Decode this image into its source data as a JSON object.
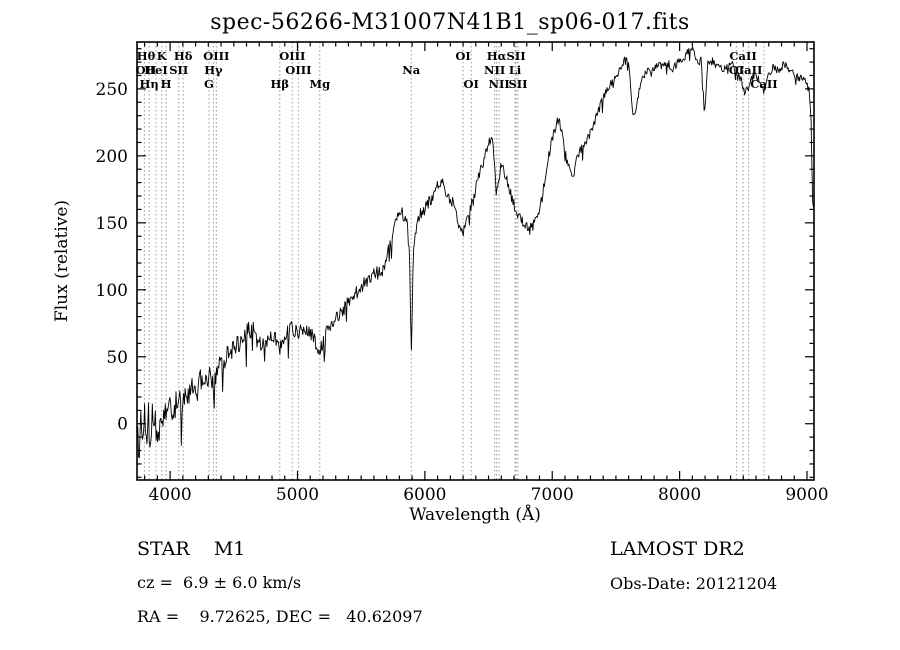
{
  "footer": {
    "class_label": "STAR    M1",
    "survey": "LAMOST DR2",
    "cz": "cz =  6.9 ± 6.0 km/s",
    "obs_date": "Obs-Date: 20121204",
    "coords": "RA =    9.72625, DEC =   40.62097"
  },
  "chart_data": {
    "type": "line",
    "title": "spec-56266-M31007N41B1_sp06-017.fits",
    "xlabel": "Wavelength (Å)",
    "ylabel": "Flux (relative)",
    "xlim": [
      3740,
      9055
    ],
    "ylim": [
      -42,
      285
    ],
    "xticks": [
      4000,
      5000,
      6000,
      7000,
      8000,
      9000
    ],
    "yticks": [
      0,
      50,
      100,
      150,
      200,
      250
    ],
    "x_minor_step": 100,
    "y_minor_step": 10,
    "grid": false,
    "legend": "none",
    "line_color": "#000000",
    "marker_line_color": "#999999",
    "noise": {
      "x": [
        3740,
        4300,
        5000,
        6000,
        7000,
        8000,
        9050
      ],
      "amp": [
        13,
        9,
        6,
        5,
        4,
        3.5,
        3
      ],
      "seed": 20121204
    },
    "spectral_lines": [
      {
        "label": "OII",
        "wavelength": 3727,
        "row": 2
      },
      {
        "label": "Hθ",
        "wavelength": 3798,
        "row": 1
      },
      {
        "label": "Hη",
        "wavelength": 3835,
        "row": 3
      },
      {
        "label": "HeI",
        "wavelength": 3889,
        "row": 2
      },
      {
        "label": "K",
        "wavelength": 3934,
        "row": 1
      },
      {
        "label": "H",
        "wavelength": 3968,
        "row": 3
      },
      {
        "label": "SII",
        "wavelength": 4068,
        "row": 2
      },
      {
        "label": "Hδ",
        "wavelength": 4102,
        "row": 1
      },
      {
        "label": "G",
        "wavelength": 4305,
        "row": 3
      },
      {
        "label": "Hγ",
        "wavelength": 4340,
        "row": 2
      },
      {
        "label": "OIII",
        "wavelength": 4363,
        "row": 1
      },
      {
        "label": "Hβ",
        "wavelength": 4861,
        "row": 3
      },
      {
        "label": "OIII",
        "wavelength": 4959,
        "row": 1
      },
      {
        "label": "OIII",
        "wavelength": 5007,
        "row": 2
      },
      {
        "label": "Mg",
        "wavelength": 5175,
        "row": 3
      },
      {
        "label": "Na",
        "wavelength": 5893,
        "row": 2
      },
      {
        "label": "OI",
        "wavelength": 6300,
        "row": 1
      },
      {
        "label": "OI",
        "wavelength": 6364,
        "row": 3
      },
      {
        "label": "NII",
        "wavelength": 6548,
        "row": 2
      },
      {
        "label": "Hα",
        "wavelength": 6563,
        "row": 1
      },
      {
        "label": "NII",
        "wavelength": 6583,
        "row": 3
      },
      {
        "label": "Li",
        "wavelength": 6708,
        "row": 2
      },
      {
        "label": "SII",
        "wavelength": 6716,
        "row": 1
      },
      {
        "label": "SII",
        "wavelength": 6731,
        "row": 3
      },
      {
        "label": "OI",
        "wavelength": 8446,
        "row": 2
      },
      {
        "label": "CaII",
        "wavelength": 8498,
        "row": 1
      },
      {
        "label": "CaII",
        "wavelength": 8542,
        "row": 2
      },
      {
        "label": "CaII",
        "wavelength": 8662,
        "row": 3
      }
    ],
    "series": [
      {
        "name": "spectrum",
        "points": [
          [
            3740,
            -5
          ],
          [
            3755,
            -22
          ],
          [
            3770,
            12
          ],
          [
            3785,
            -8
          ],
          [
            3800,
            4
          ],
          [
            3815,
            -14
          ],
          [
            3830,
            6
          ],
          [
            3845,
            -18
          ],
          [
            3860,
            10
          ],
          [
            3875,
            -2
          ],
          [
            3890,
            8
          ],
          [
            3905,
            -10
          ],
          [
            3920,
            6
          ],
          [
            3935,
            -4
          ],
          [
            3950,
            14
          ],
          [
            3965,
            4
          ],
          [
            3980,
            12
          ],
          [
            4000,
            16
          ],
          [
            4030,
            10
          ],
          [
            4060,
            20
          ],
          [
            4090,
            14
          ],
          [
            4120,
            26
          ],
          [
            4150,
            20
          ],
          [
            4180,
            30
          ],
          [
            4210,
            24
          ],
          [
            4240,
            33
          ],
          [
            4270,
            28
          ],
          [
            4300,
            36
          ],
          [
            4340,
            30
          ],
          [
            4380,
            42
          ],
          [
            4420,
            47
          ],
          [
            4460,
            54
          ],
          [
            4500,
            57
          ],
          [
            4540,
            60
          ],
          [
            4580,
            66
          ],
          [
            4620,
            70
          ],
          [
            4660,
            71
          ],
          [
            4700,
            62
          ],
          [
            4740,
            57
          ],
          [
            4780,
            64
          ],
          [
            4820,
            67
          ],
          [
            4861,
            57
          ],
          [
            4900,
            67
          ],
          [
            4950,
            71
          ],
          [
            5000,
            69
          ],
          [
            5050,
            72
          ],
          [
            5100,
            69
          ],
          [
            5175,
            54
          ],
          [
            5220,
            67
          ],
          [
            5270,
            74
          ],
          [
            5320,
            80
          ],
          [
            5370,
            87
          ],
          [
            5420,
            92
          ],
          [
            5470,
            99
          ],
          [
            5520,
            104
          ],
          [
            5570,
            110
          ],
          [
            5620,
            114
          ],
          [
            5660,
            111
          ],
          [
            5700,
            124
          ],
          [
            5740,
            139
          ],
          [
            5780,
            154
          ],
          [
            5820,
            159
          ],
          [
            5860,
            149
          ],
          [
            5880,
            128
          ],
          [
            5893,
            48
          ],
          [
            5910,
            132
          ],
          [
            5940,
            153
          ],
          [
            5980,
            158
          ],
          [
            6020,
            163
          ],
          [
            6060,
            170
          ],
          [
            6100,
            178
          ],
          [
            6140,
            183
          ],
          [
            6180,
            169
          ],
          [
            6220,
            166
          ],
          [
            6260,
            149
          ],
          [
            6300,
            141
          ],
          [
            6340,
            158
          ],
          [
            6380,
            168
          ],
          [
            6420,
            183
          ],
          [
            6460,
            196
          ],
          [
            6500,
            208
          ],
          [
            6530,
            215
          ],
          [
            6563,
            174
          ],
          [
            6600,
            193
          ],
          [
            6640,
            184
          ],
          [
            6680,
            169
          ],
          [
            6720,
            159
          ],
          [
            6760,
            151
          ],
          [
            6800,
            147
          ],
          [
            6840,
            149
          ],
          [
            6880,
            154
          ],
          [
            6920,
            168
          ],
          [
            6960,
            193
          ],
          [
            7000,
            213
          ],
          [
            7030,
            222
          ],
          [
            7050,
            231
          ],
          [
            7080,
            214
          ],
          [
            7120,
            193
          ],
          [
            7160,
            184
          ],
          [
            7200,
            199
          ],
          [
            7240,
            208
          ],
          [
            7280,
            213
          ],
          [
            7320,
            223
          ],
          [
            7360,
            233
          ],
          [
            7400,
            243
          ],
          [
            7440,
            250
          ],
          [
            7480,
            256
          ],
          [
            7520,
            263
          ],
          [
            7560,
            271
          ],
          [
            7600,
            270
          ],
          [
            7625,
            236
          ],
          [
            7650,
            228
          ],
          [
            7680,
            249
          ],
          [
            7710,
            257
          ],
          [
            7740,
            264
          ],
          [
            7780,
            261
          ],
          [
            7820,
            269
          ],
          [
            7860,
            267
          ],
          [
            7900,
            271
          ],
          [
            7940,
            264
          ],
          [
            7980,
            269
          ],
          [
            8020,
            273
          ],
          [
            8060,
            277
          ],
          [
            8100,
            279
          ],
          [
            8140,
            269
          ],
          [
            8170,
            271
          ],
          [
            8195,
            231
          ],
          [
            8220,
            269
          ],
          [
            8260,
            271
          ],
          [
            8300,
            267
          ],
          [
            8340,
            264
          ],
          [
            8400,
            269
          ],
          [
            8440,
            265
          ],
          [
            8480,
            257
          ],
          [
            8510,
            247
          ],
          [
            8542,
            251
          ],
          [
            8580,
            261
          ],
          [
            8620,
            257
          ],
          [
            8662,
            249
          ],
          [
            8700,
            261
          ],
          [
            8740,
            267
          ],
          [
            8780,
            263
          ],
          [
            8820,
            269
          ],
          [
            8860,
            265
          ],
          [
            8900,
            261
          ],
          [
            8940,
            257
          ],
          [
            8980,
            259
          ],
          [
            9010,
            254
          ],
          [
            9030,
            235
          ],
          [
            9045,
            160
          ]
        ]
      }
    ]
  }
}
